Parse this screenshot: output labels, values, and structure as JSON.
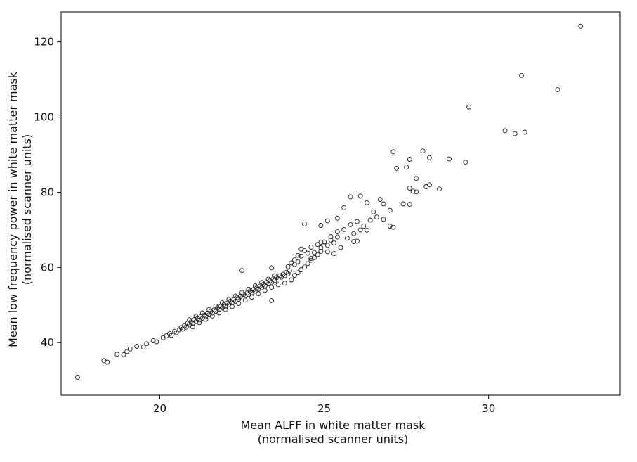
{
  "chart_data": {
    "type": "scatter",
    "title": "",
    "xlabel": [
      "Mean ALFF in white matter mask",
      "(normalised scanner units)"
    ],
    "ylabel": [
      "Mean low frequency power in white matter mask",
      "(normalised scanner units)"
    ],
    "xlim": [
      17.0,
      34.0
    ],
    "ylim": [
      26.0,
      128.0
    ],
    "xticks": [
      20,
      25,
      30
    ],
    "yticks": [
      40,
      60,
      80,
      100,
      120
    ],
    "grid": false,
    "marker": "open-circle",
    "marker_color": "#222222",
    "points": [
      [
        17.5,
        30.8
      ],
      [
        18.3,
        35.2
      ],
      [
        18.4,
        34.8
      ],
      [
        18.7,
        36.9
      ],
      [
        18.9,
        36.8
      ],
      [
        19.0,
        37.6
      ],
      [
        19.1,
        38.3
      ],
      [
        19.3,
        39.0
      ],
      [
        19.5,
        38.8
      ],
      [
        19.6,
        39.7
      ],
      [
        19.8,
        40.5
      ],
      [
        19.9,
        40.2
      ],
      [
        20.1,
        41.3
      ],
      [
        20.2,
        41.8
      ],
      [
        20.3,
        42.4
      ],
      [
        20.35,
        41.9
      ],
      [
        20.45,
        43.0
      ],
      [
        20.5,
        42.6
      ],
      [
        20.6,
        43.4
      ],
      [
        20.65,
        44.0
      ],
      [
        20.7,
        43.6
      ],
      [
        20.75,
        44.5
      ],
      [
        20.8,
        44.1
      ],
      [
        20.85,
        45.2
      ],
      [
        20.9,
        44.7
      ],
      [
        20.95,
        45.5
      ],
      [
        21.0,
        45.1
      ],
      [
        21.05,
        46.1
      ],
      [
        21.1,
        45.6
      ],
      [
        21.15,
        46.4
      ],
      [
        21.2,
        46.0
      ],
      [
        21.25,
        46.9
      ],
      [
        21.3,
        46.5
      ],
      [
        21.35,
        47.3
      ],
      [
        21.4,
        46.9
      ],
      [
        21.45,
        47.8
      ],
      [
        21.5,
        47.4
      ],
      [
        21.55,
        48.3
      ],
      [
        21.6,
        47.9
      ],
      [
        21.65,
        48.7
      ],
      [
        21.7,
        48.3
      ],
      [
        21.75,
        49.2
      ],
      [
        21.8,
        48.8
      ],
      [
        21.85,
        49.6
      ],
      [
        21.9,
        49.2
      ],
      [
        21.95,
        50.1
      ],
      [
        22.0,
        49.7
      ],
      [
        22.05,
        50.5
      ],
      [
        22.1,
        50.1
      ],
      [
        22.15,
        51.0
      ],
      [
        22.2,
        50.6
      ],
      [
        22.25,
        51.4
      ],
      [
        22.3,
        51.0
      ],
      [
        22.35,
        51.9
      ],
      [
        22.4,
        51.5
      ],
      [
        22.45,
        52.3
      ],
      [
        22.5,
        51.9
      ],
      [
        22.55,
        52.8
      ],
      [
        22.6,
        52.4
      ],
      [
        22.65,
        53.2
      ],
      [
        22.7,
        52.8
      ],
      [
        22.75,
        53.7
      ],
      [
        22.8,
        53.3
      ],
      [
        22.85,
        54.1
      ],
      [
        22.9,
        53.7
      ],
      [
        22.95,
        54.6
      ],
      [
        23.0,
        54.2
      ],
      [
        23.05,
        55.0
      ],
      [
        23.1,
        54.6
      ],
      [
        23.15,
        55.5
      ],
      [
        23.2,
        55.1
      ],
      [
        23.25,
        56.0
      ],
      [
        23.3,
        55.6
      ],
      [
        23.35,
        56.4
      ],
      [
        23.4,
        56.0
      ],
      [
        23.45,
        56.9
      ],
      [
        23.5,
        56.5
      ],
      [
        23.55,
        57.3
      ],
      [
        23.6,
        56.9
      ],
      [
        23.65,
        57.8
      ],
      [
        23.7,
        57.4
      ],
      [
        23.75,
        58.2
      ],
      [
        23.8,
        57.8
      ],
      [
        23.85,
        58.7
      ],
      [
        23.9,
        58.3
      ],
      [
        23.95,
        59.1
      ],
      [
        21.0,
        44.2
      ],
      [
        21.2,
        45.3
      ],
      [
        21.4,
        46.2
      ],
      [
        21.6,
        47.1
      ],
      [
        21.8,
        47.9
      ],
      [
        22.0,
        48.8
      ],
      [
        22.2,
        49.6
      ],
      [
        22.4,
        50.4
      ],
      [
        22.6,
        51.3
      ],
      [
        22.8,
        52.1
      ],
      [
        23.0,
        53.0
      ],
      [
        23.2,
        53.9
      ],
      [
        23.4,
        54.7
      ],
      [
        20.9,
        46.1
      ],
      [
        21.1,
        47.0
      ],
      [
        21.3,
        47.9
      ],
      [
        21.5,
        48.8
      ],
      [
        21.7,
        49.7
      ],
      [
        21.9,
        50.6
      ],
      [
        22.1,
        51.5
      ],
      [
        22.3,
        52.4
      ],
      [
        22.5,
        53.3
      ],
      [
        22.7,
        54.2
      ],
      [
        22.9,
        55.1
      ],
      [
        23.1,
        56.0
      ],
      [
        23.3,
        56.9
      ],
      [
        23.5,
        57.8
      ],
      [
        22.5,
        59.2
      ],
      [
        23.4,
        59.9
      ],
      [
        23.4,
        51.2
      ],
      [
        23.6,
        55.4
      ],
      [
        23.8,
        55.8
      ],
      [
        24.0,
        56.7
      ],
      [
        24.1,
        57.9
      ],
      [
        24.2,
        58.6
      ],
      [
        24.3,
        59.4
      ],
      [
        24.4,
        60.1
      ],
      [
        24.5,
        61.0
      ],
      [
        24.6,
        61.9
      ],
      [
        24.7,
        62.6
      ],
      [
        24.8,
        63.4
      ],
      [
        24.9,
        64.3
      ],
      [
        24.0,
        61.2
      ],
      [
        24.1,
        62.0
      ],
      [
        24.2,
        61.5
      ],
      [
        24.3,
        63.0
      ],
      [
        24.4,
        64.5
      ],
      [
        24.5,
        63.8
      ],
      [
        24.6,
        65.4
      ],
      [
        24.7,
        64.0
      ],
      [
        24.8,
        66.1
      ],
      [
        24.9,
        65.2
      ],
      [
        25.0,
        66.8
      ],
      [
        25.1,
        65.9
      ],
      [
        25.2,
        67.3
      ],
      [
        25.3,
        66.5
      ],
      [
        25.4,
        68.1
      ],
      [
        24.4,
        71.6
      ],
      [
        24.9,
        71.2
      ],
      [
        25.1,
        72.4
      ],
      [
        25.4,
        73.1
      ],
      [
        25.6,
        75.9
      ],
      [
        25.8,
        78.8
      ],
      [
        26.1,
        79.0
      ],
      [
        26.3,
        77.2
      ],
      [
        26.5,
        74.8
      ],
      [
        26.7,
        78.1
      ],
      [
        26.8,
        76.9
      ],
      [
        27.0,
        75.2
      ],
      [
        25.2,
        68.2
      ],
      [
        25.4,
        69.5
      ],
      [
        25.6,
        70.1
      ],
      [
        25.8,
        71.4
      ],
      [
        25.9,
        69.0
      ],
      [
        26.0,
        72.2
      ],
      [
        26.1,
        70.0
      ],
      [
        26.2,
        71.0
      ],
      [
        26.3,
        69.9
      ],
      [
        26.4,
        72.6
      ],
      [
        26.6,
        73.4
      ],
      [
        26.8,
        72.8
      ],
      [
        27.0,
        71.0
      ],
      [
        27.1,
        70.7
      ],
      [
        25.5,
        65.3
      ],
      [
        25.7,
        67.8
      ],
      [
        25.9,
        66.9
      ],
      [
        26.0,
        67.0
      ],
      [
        25.3,
        63.7
      ],
      [
        25.1,
        64.2
      ],
      [
        24.6,
        62.4
      ],
      [
        24.9,
        66.7
      ],
      [
        24.3,
        64.9
      ],
      [
        24.2,
        63.2
      ],
      [
        24.1,
        60.8
      ],
      [
        23.9,
        60.2
      ],
      [
        27.1,
        90.8
      ],
      [
        27.2,
        86.4
      ],
      [
        27.5,
        86.7
      ],
      [
        27.6,
        88.8
      ],
      [
        27.6,
        81.1
      ],
      [
        27.7,
        80.3
      ],
      [
        27.8,
        83.7
      ],
      [
        27.8,
        80.1
      ],
      [
        27.4,
        76.9
      ],
      [
        27.6,
        76.8
      ],
      [
        28.0,
        91.0
      ],
      [
        28.1,
        81.5
      ],
      [
        28.2,
        89.2
      ],
      [
        28.2,
        82.0
      ],
      [
        28.5,
        80.9
      ],
      [
        28.8,
        88.9
      ],
      [
        29.3,
        88.0
      ],
      [
        29.4,
        102.7
      ],
      [
        30.5,
        96.4
      ],
      [
        30.8,
        95.6
      ],
      [
        31.0,
        111.1
      ],
      [
        31.1,
        96.0
      ],
      [
        32.1,
        107.3
      ],
      [
        32.8,
        124.2
      ]
    ]
  }
}
